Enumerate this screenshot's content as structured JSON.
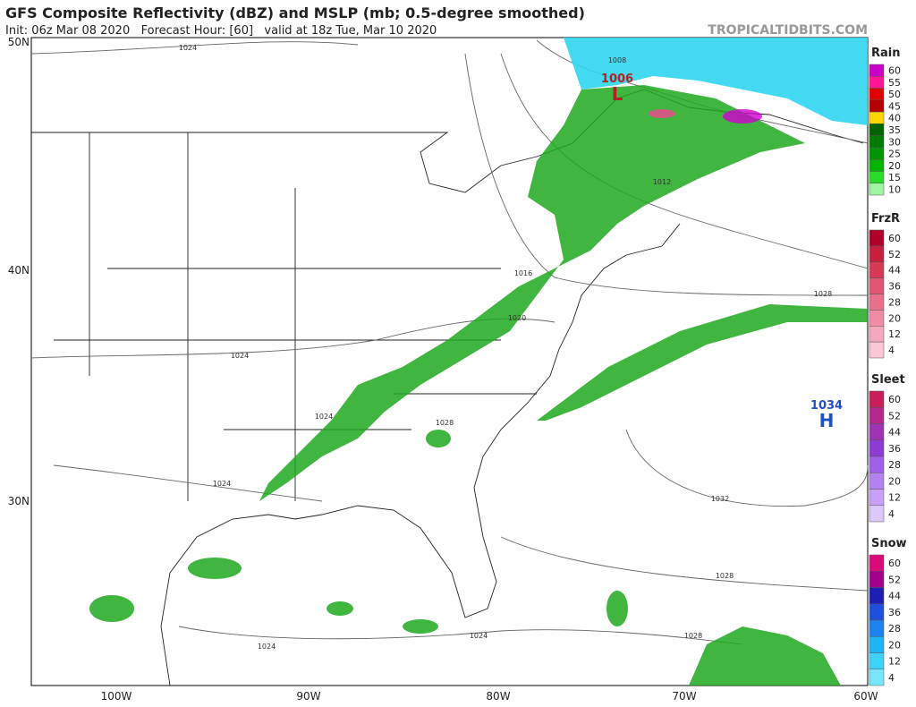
{
  "header": {
    "title": "GFS Composite Reflectivity (dBZ) and MSLP (mb; 0.5-degree smoothed)",
    "subtitle": "Init: 06z Mar 08 2020   Forecast Hour: [60]   valid at 18z Tue, Mar 10 2020",
    "credit": "TROPICALTIDBITS.COM"
  },
  "map": {
    "lat_labels": [
      "50N",
      "40N",
      "30N"
    ],
    "lon_labels": [
      "100W",
      "90W",
      "80W",
      "70W",
      "60W"
    ],
    "pressure_centers": [
      {
        "value": "1006",
        "label": "L",
        "color": "#b22222"
      },
      {
        "value": "1034",
        "label": "H",
        "color": "#1e50c8"
      }
    ],
    "isobar_labels": [
      "1024",
      "1008",
      "1012",
      "1016",
      "1020",
      "1024",
      "1024",
      "1028",
      "1024",
      "1028",
      "1032",
      "1028",
      "1024",
      "1024",
      "1028"
    ]
  },
  "legend": [
    {
      "title": "Rain",
      "levels": [
        60,
        55,
        50,
        45,
        40,
        35,
        30,
        25,
        20,
        15,
        10
      ],
      "colors": [
        "#c800c8",
        "#ff1493",
        "#e00000",
        "#b40000",
        "#ffd700",
        "#006400",
        "#007d00",
        "#009600",
        "#00b400",
        "#28dc28",
        "#a0f5a0"
      ]
    },
    {
      "title": "FrzR",
      "levels": [
        60,
        52,
        44,
        36,
        28,
        20,
        12,
        4
      ],
      "colors": [
        "#b0002a",
        "#c8203c",
        "#d83a55",
        "#e05570",
        "#e8708a",
        "#f08ca5",
        "#f5a8bd",
        "#f8c8d5"
      ]
    },
    {
      "title": "Sleet",
      "levels": [
        60,
        52,
        44,
        36,
        28,
        20,
        12,
        4
      ],
      "colors": [
        "#c81e5a",
        "#b4288c",
        "#a032b4",
        "#8c3cd2",
        "#a060e6",
        "#b482f0",
        "#c8a0f5",
        "#dcc8fa"
      ]
    },
    {
      "title": "Snow",
      "levels": [
        60,
        52,
        44,
        36,
        28,
        20,
        12,
        4
      ],
      "colors": [
        "#dc0a78",
        "#a0008c",
        "#1e1eb4",
        "#1e50dc",
        "#1e82f0",
        "#1eb4f5",
        "#3cd2fa",
        "#78e6fa"
      ]
    }
  ]
}
